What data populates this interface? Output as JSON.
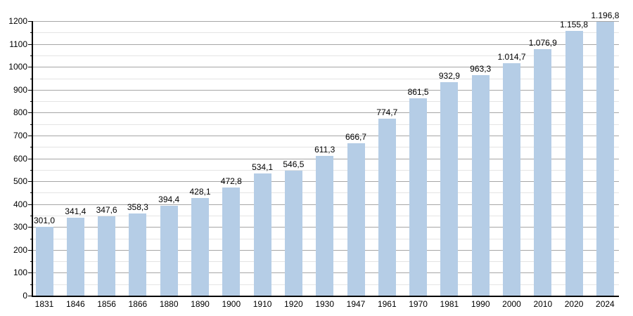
{
  "chart_data": {
    "type": "bar",
    "title": "",
    "xlabel": "",
    "ylabel": "",
    "categories": [
      "1831",
      "1846",
      "1856",
      "1866",
      "1880",
      "1890",
      "1900",
      "1910",
      "1920",
      "1930",
      "1947",
      "1961",
      "1970",
      "1981",
      "1990",
      "2000",
      "2010",
      "2020",
      "2024"
    ],
    "values": [
      301.0,
      341.4,
      347.6,
      358.3,
      394.4,
      428.1,
      472.8,
      534.1,
      546.5,
      611.3,
      666.7,
      774.7,
      861.5,
      932.9,
      963.3,
      1014.7,
      1076.9,
      1155.8,
      1196.8
    ],
    "value_labels": [
      "301,0",
      "341,4",
      "347,6",
      "358,3",
      "394,4",
      "428,1",
      "472,8",
      "534,1",
      "546,5",
      "611,3",
      "666,7",
      "774,7",
      "861,5",
      "932,9",
      "963,3",
      "1.014,7",
      "1.076,9",
      "1.155,8",
      "1.196,8"
    ],
    "ylim": [
      0,
      1200
    ],
    "y_tick_step": 100,
    "y_minor_tick_step": 50,
    "y_tick_labels": [
      "0",
      "100",
      "200",
      "300",
      "400",
      "500",
      "600",
      "700",
      "800",
      "900",
      "1000",
      "1100",
      "1200"
    ],
    "grid": true,
    "legend_position": "none",
    "bar_color": "#b5cde6",
    "major_grid_color": "#a6a6a6",
    "minor_grid_color": "#e4e4e4",
    "axis_color": "#000000",
    "background_color": "#ffffff"
  }
}
